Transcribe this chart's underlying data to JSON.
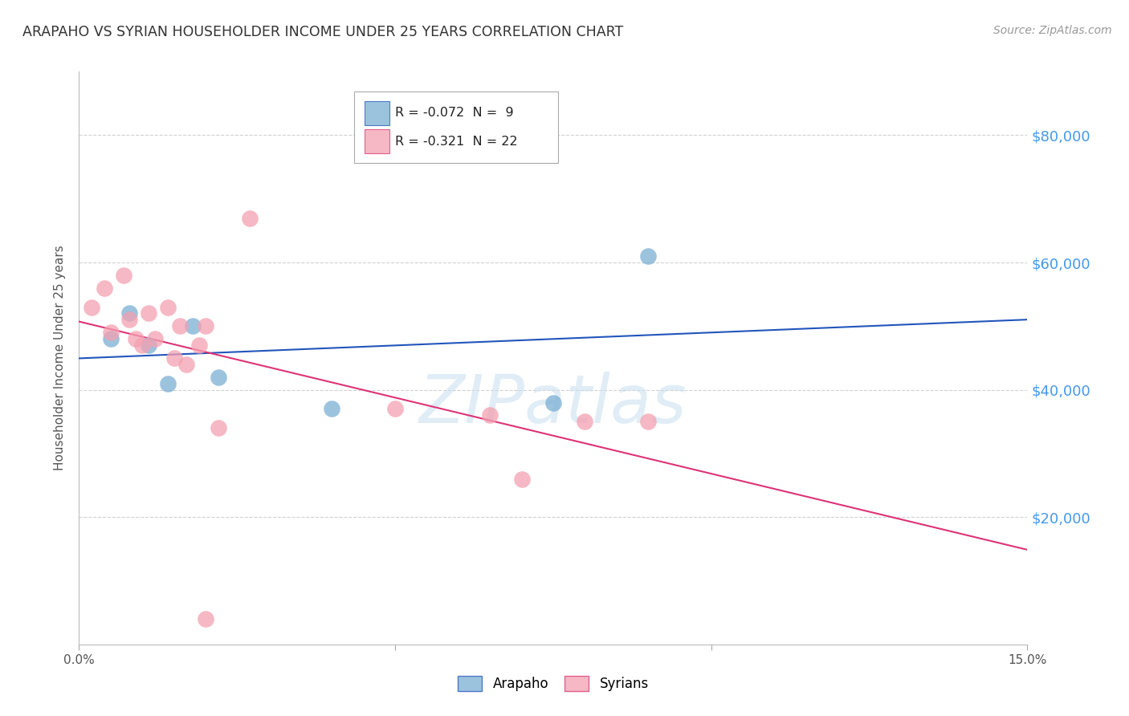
{
  "title": "ARAPAHO VS SYRIAN HOUSEHOLDER INCOME UNDER 25 YEARS CORRELATION CHART",
  "source": "Source: ZipAtlas.com",
  "ylabel": "Householder Income Under 25 years",
  "xmin": 0.0,
  "xmax": 0.15,
  "ymin": 0,
  "ymax": 90000,
  "yticks": [
    0,
    20000,
    40000,
    60000,
    80000
  ],
  "ytick_labels": [
    "",
    "$20,000",
    "$40,000",
    "$60,000",
    "$80,000"
  ],
  "xticks": [
    0.0,
    0.05,
    0.1,
    0.15
  ],
  "xtick_labels": [
    "0.0%",
    "",
    "",
    "15.0%"
  ],
  "background_color": "#ffffff",
  "grid_color": "#cccccc",
  "arapaho_color": "#7bafd4",
  "syrian_color": "#f4a0b0",
  "arapaho_line_color": "#2255bb",
  "syrian_line_color": "#dd3377",
  "right_label_color": "#4499ee",
  "arapaho_R": -0.072,
  "arapaho_N": 9,
  "syrian_R": -0.321,
  "syrian_N": 22,
  "arapaho_x": [
    0.005,
    0.008,
    0.011,
    0.014,
    0.018,
    0.022,
    0.04,
    0.075,
    0.09
  ],
  "arapaho_y": [
    48000,
    52000,
    47000,
    41000,
    50000,
    42000,
    37000,
    38000,
    61000
  ],
  "syrian_x": [
    0.002,
    0.004,
    0.005,
    0.007,
    0.008,
    0.009,
    0.01,
    0.011,
    0.012,
    0.014,
    0.015,
    0.016,
    0.017,
    0.019,
    0.02,
    0.022,
    0.027,
    0.05,
    0.065,
    0.07,
    0.08,
    0.09
  ],
  "syrian_y": [
    53000,
    56000,
    49000,
    58000,
    51000,
    48000,
    47000,
    52000,
    48000,
    53000,
    45000,
    50000,
    44000,
    47000,
    50000,
    34000,
    67000,
    37000,
    36000,
    26000,
    35000,
    35000
  ],
  "syrian_outlier_x": [
    0.02
  ],
  "syrian_outlier_y": [
    4000
  ],
  "watermark": "ZIPatlas"
}
